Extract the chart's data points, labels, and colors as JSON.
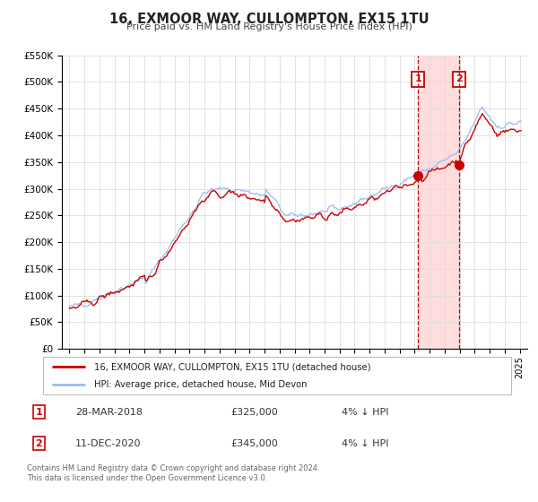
{
  "title": "16, EXMOOR WAY, CULLOMPTON, EX15 1TU",
  "subtitle": "Price paid vs. HM Land Registry's House Price Index (HPI)",
  "legend_entry1": "16, EXMOOR WAY, CULLOMPTON, EX15 1TU (detached house)",
  "legend_entry2": "HPI: Average price, detached house, Mid Devon",
  "sale1_date": "28-MAR-2018",
  "sale1_price": "£325,000",
  "sale1_hpi": "4% ↓ HPI",
  "sale1_year": 2018.23,
  "sale1_value": 325000,
  "sale2_date": "11-DEC-2020",
  "sale2_price": "£345,000",
  "sale2_hpi": "4% ↓ HPI",
  "sale2_year": 2020.95,
  "sale2_value": 345000,
  "vline1_x": 2018.23,
  "vline2_x": 2020.95,
  "shade_color": "#ffdddd",
  "vline_color": "#cc0000",
  "red_line_color": "#cc0000",
  "blue_line_color": "#99bbee",
  "marker_color": "#cc0000",
  "ylim": [
    0,
    550000
  ],
  "xlim": [
    1994.5,
    2025.5
  ],
  "background_color": "#ffffff",
  "grid_color": "#dddddd",
  "footnote1": "Contains HM Land Registry data © Crown copyright and database right 2024.",
  "footnote2": "This data is licensed under the Open Government Licence v3.0."
}
